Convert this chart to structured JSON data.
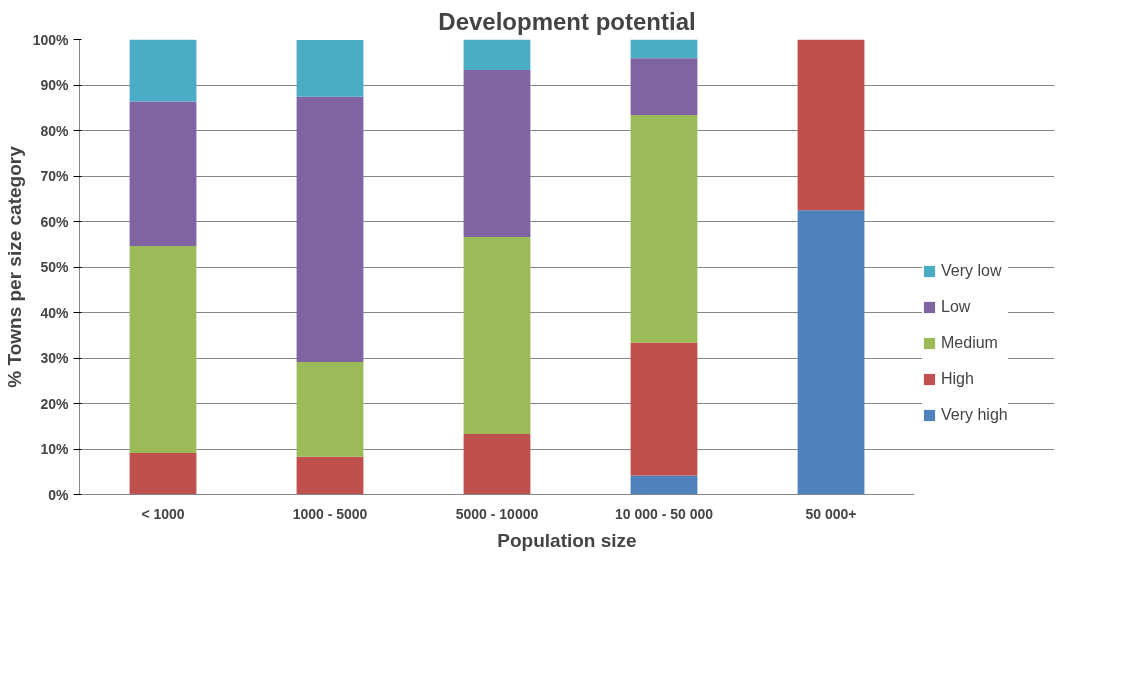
{
  "chart_data": {
    "type": "bar",
    "stacked": true,
    "title": "Development potential",
    "xlabel": "Population size",
    "ylabel": "% Towns per size category",
    "categories": [
      "< 1000",
      "1000 - 5000",
      "5000 - 10000",
      "10 000 - 50 000",
      "50 000+"
    ],
    "series": [
      {
        "name": "Very high",
        "color": "#4f81bd",
        "values": [
          0,
          0,
          0,
          4.2,
          62.5
        ]
      },
      {
        "name": "High",
        "color": "#c0504d",
        "values": [
          9.1,
          8.3,
          13.3,
          29.2,
          37.5
        ]
      },
      {
        "name": "Medium",
        "color": "#9bbb59",
        "values": [
          45.5,
          20.8,
          43.3,
          50.0,
          0
        ]
      },
      {
        "name": "Low",
        "color": "#8064a2",
        "values": [
          31.8,
          58.3,
          36.7,
          12.5,
          0
        ]
      },
      {
        "name": "Very low",
        "color": "#4bacc6",
        "values": [
          13.6,
          12.5,
          6.7,
          4.2,
          0
        ]
      }
    ],
    "ylim": [
      0,
      100
    ],
    "yticks": [
      {
        "value": 0,
        "label": "0%"
      },
      {
        "value": 10,
        "label": "10%"
      },
      {
        "value": 20,
        "label": "20%"
      },
      {
        "value": 30,
        "label": "30%"
      },
      {
        "value": 40,
        "label": "40%"
      },
      {
        "value": 50,
        "label": "50%"
      },
      {
        "value": 60,
        "label": "60%"
      },
      {
        "value": 70,
        "label": "70%"
      },
      {
        "value": 80,
        "label": "80%"
      },
      {
        "value": 90,
        "label": "90%"
      },
      {
        "value": 100,
        "label": "100%"
      }
    ],
    "grid": "y",
    "legend": "right"
  }
}
